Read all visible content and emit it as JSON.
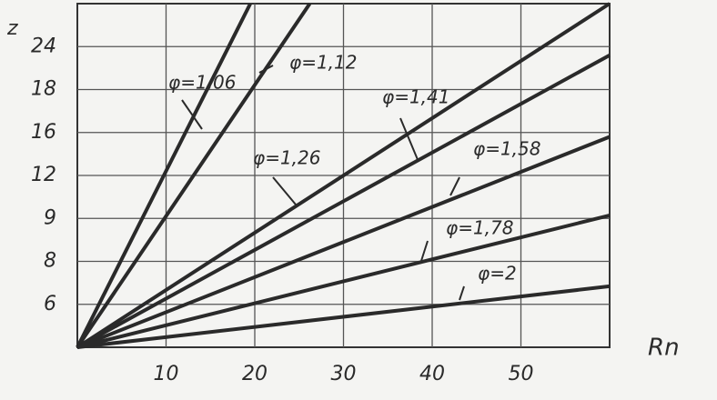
{
  "chart_data": {
    "type": "line",
    "y_label": "z",
    "x_label": "Rn",
    "xlim": [
      0,
      60
    ],
    "xticks": [
      10,
      20,
      30,
      40,
      50
    ],
    "ylim": [
      0,
      8
    ],
    "yticks": [
      {
        "value": 1,
        "label": "6"
      },
      {
        "value": 2,
        "label": "8"
      },
      {
        "value": 3,
        "label": "9"
      },
      {
        "value": 4,
        "label": "12"
      },
      {
        "value": 5,
        "label": "16"
      },
      {
        "value": 6,
        "label": "18"
      },
      {
        "value": 7,
        "label": "24"
      }
    ],
    "grid": true,
    "series": [
      {
        "name": "φ=1,06",
        "color": "#2a2a2a",
        "x": [
          0,
          19.5
        ],
        "values": [
          0,
          8
        ]
      },
      {
        "name": "φ=1,12",
        "color": "#2a2a2a",
        "x": [
          0,
          26.2
        ],
        "values": [
          0,
          8
        ]
      },
      {
        "name": "φ=1,26",
        "color": "#2a2a2a",
        "x": [
          0,
          60
        ],
        "values": [
          0,
          8
        ]
      },
      {
        "name": "φ=1,41",
        "color": "#2a2a2a",
        "x": [
          0,
          60
        ],
        "values": [
          0,
          6.8
        ]
      },
      {
        "name": "φ=1,58",
        "color": "#2a2a2a",
        "x": [
          0,
          60
        ],
        "values": [
          0,
          4.9
        ]
      },
      {
        "name": "φ=1,78",
        "color": "#2a2a2a",
        "x": [
          0,
          60
        ],
        "values": [
          0,
          3.07
        ]
      },
      {
        "name": "φ=2",
        "color": "#2a2a2a",
        "x": [
          0,
          60
        ],
        "values": [
          0,
          1.42
        ]
      }
    ]
  }
}
